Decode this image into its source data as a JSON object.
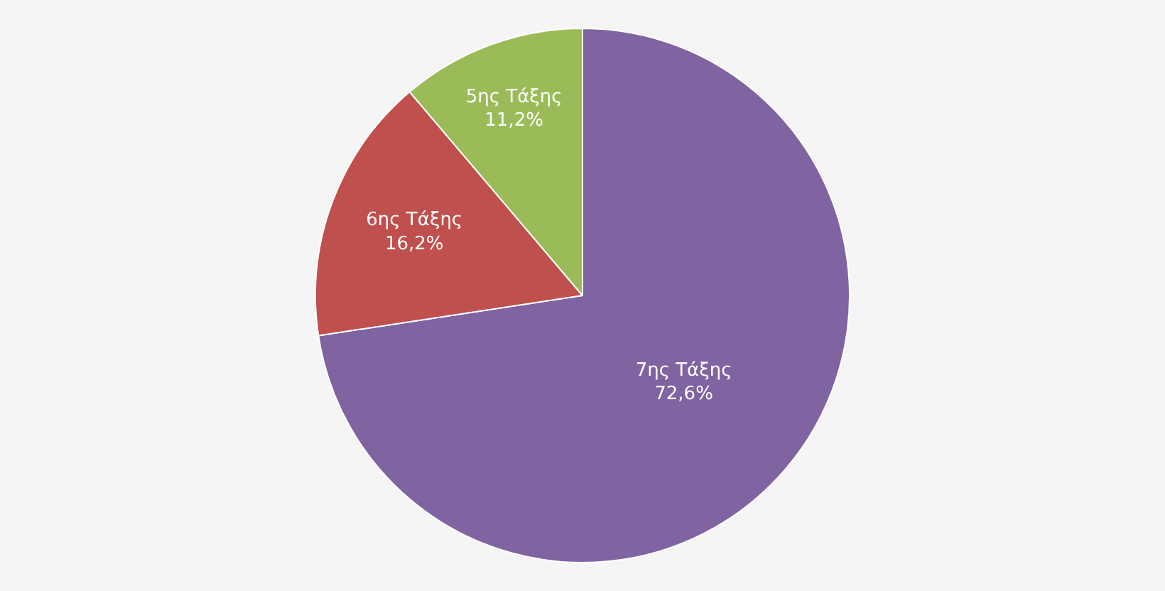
{
  "chart_data": {
    "type": "pie",
    "categories": [
      "7ης Τάξης",
      "6ης Τάξης",
      "5ης Τάξης"
    ],
    "values": [
      72.6,
      16.2,
      11.2
    ],
    "value_labels": [
      "72,6%",
      "16,2%",
      "11,2%"
    ],
    "colors": [
      "#8064a2",
      "#c0504d",
      "#9bbb59"
    ],
    "legend": false
  }
}
